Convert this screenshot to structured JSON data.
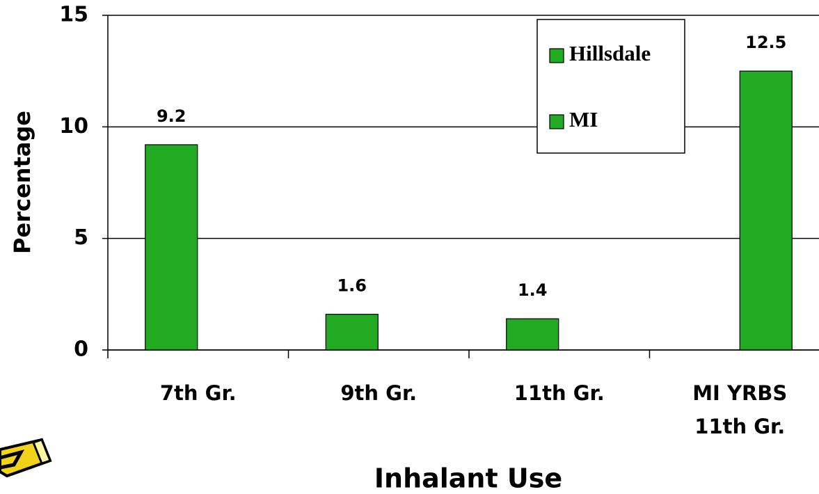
{
  "chart_data": {
    "type": "bar",
    "x_label": "Inhalant Use",
    "y_label": "Percentage",
    "categories": [
      "7th Gr.",
      "9th Gr.",
      "11th Gr.",
      "MI YRBS 11th Gr."
    ],
    "series": [
      {
        "name": "Hillsdale",
        "color": "#22aa22",
        "values": [
          9.2,
          1.6,
          1.4,
          null
        ]
      },
      {
        "name": "MI",
        "color": "#22aa22",
        "values": [
          null,
          null,
          null,
          12.5
        ]
      }
    ],
    "ylim": [
      0,
      15
    ],
    "yticks": [
      0,
      5,
      10,
      15
    ],
    "grid": true,
    "legend": "upper right"
  }
}
